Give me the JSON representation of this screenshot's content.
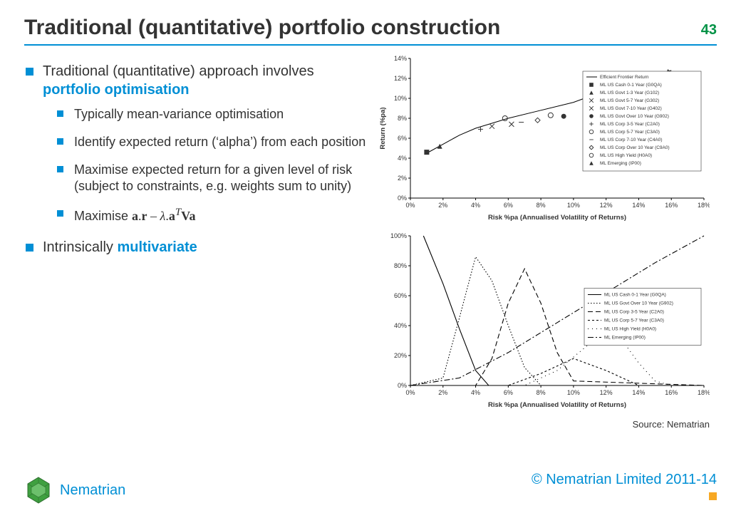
{
  "page_number": "43",
  "title": "Traditional (quantitative) portfolio construction",
  "accent_color": "#008fd5",
  "page_num_color": "#009245",
  "bullets": {
    "b1_prefix": "Traditional (quantitative) approach involves ",
    "b1_highlight": "portfolio optimisation",
    "sub1": "Typically mean-variance optimisation",
    "sub2": "Identify expected return (‘alpha’) from each position",
    "sub3": "Maximise expected return for a given level of risk (subject to constraints, e.g. weights sum to unity)",
    "sub4_prefix": "Maximise  ",
    "b2_prefix": "Intrinsically ",
    "b2_highlight": "multivariate"
  },
  "source": "Source: Nematrian",
  "footer": {
    "brand": "Nematrian",
    "copyright": "© Nematrian Limited 2011-14"
  },
  "chart_top": {
    "type": "scatter+line",
    "xlabel": "Risk %pa (Annualised Volatility of Returns)",
    "ylabel": "Return (%pa)",
    "xlim": [
      0,
      18
    ],
    "ylim": [
      0,
      14
    ],
    "xtick_step": 2,
    "xtick_suffix": "%",
    "ytick_step": 2,
    "ytick_suffix": "%",
    "background_color": "#ffffff",
    "axis_color": "#000000",
    "frontier_line": {
      "color": "#000000",
      "width": 1,
      "points_xy": [
        [
          1,
          4.5
        ],
        [
          2,
          5.4
        ],
        [
          3,
          6.3
        ],
        [
          4,
          7.0
        ],
        [
          6,
          8.0
        ],
        [
          8,
          8.8
        ],
        [
          10,
          9.6
        ],
        [
          12,
          10.8
        ],
        [
          14,
          12.0
        ],
        [
          16,
          12.8
        ]
      ]
    },
    "markers": [
      {
        "name": "ML US Cash 0-1 Year (G0QA)",
        "shape": "square",
        "x": 1.0,
        "y": 4.6
      },
      {
        "name": "ML US Govt 1-3 Year (G102)",
        "shape": "triangle",
        "x": 1.8,
        "y": 5.2
      },
      {
        "name": "ML US Govt 5-7 Year (G302)",
        "shape": "x",
        "x": 5.0,
        "y": 7.2
      },
      {
        "name": "ML US Govt 7-10 Year (G402)",
        "shape": "x",
        "x": 6.2,
        "y": 7.4
      },
      {
        "name": "ML US Govt Over 10 Year (G902)",
        "shape": "circle-filled",
        "x": 9.4,
        "y": 8.2
      },
      {
        "name": "ML US Corp 3-5 Year (C2A0)",
        "shape": "plus",
        "x": 4.3,
        "y": 6.9
      },
      {
        "name": "ML US Corp 5-7 Year (C3A0)",
        "shape": "circle-open",
        "x": 5.8,
        "y": 8.0
      },
      {
        "name": "ML US Corp 7-10 Year (C4A0)",
        "shape": "dash",
        "x": 6.8,
        "y": 7.6
      },
      {
        "name": "ML US Corp Over 10 Year (C9A0)",
        "shape": "diamond",
        "x": 7.8,
        "y": 7.8
      },
      {
        "name": "ML US High Yield (H0A0)",
        "shape": "circle-open",
        "x": 8.6,
        "y": 8.3
      },
      {
        "name": "ML Emerging (IP00)",
        "shape": "triangle",
        "x": 15.8,
        "y": 12.7
      }
    ],
    "legend_title": "Efficient Frontier Return",
    "legend_items": [
      "Efficient Frontier Return",
      "ML US Cash 0-1 Year (G0QA)",
      "ML US Govt 1-3 Year (G102)",
      "ML US Govt 5-7 Year (G302)",
      "ML US Govt 7-10 Year (G402)",
      "ML US Govt Over 10 Year (G902)",
      "ML US Corp 3-5 Year (C2A0)",
      "ML US Corp 5-7 Year (C3A0)",
      "ML US Corp 7-10 Year (C4A0)",
      "ML US Corp Over 10 Year (C9A0)",
      "ML US High Yield (H0A0)",
      "ML Emerging (IP00)"
    ]
  },
  "chart_bottom": {
    "type": "line",
    "xlabel": "Risk %pa (Annualised Volatility of Returns)",
    "xlim": [
      0,
      18
    ],
    "ylim": [
      0,
      100
    ],
    "xtick_step": 2,
    "xtick_suffix": "%",
    "yticks": [
      0,
      20,
      40,
      60,
      80,
      100
    ],
    "ytick_suffix": "%",
    "background_color": "#ffffff",
    "axis_color": "#000000",
    "series": [
      {
        "name": "ML US Cash 0-1 Year (G0QA)",
        "dash": "solid",
        "points_xy": [
          [
            0.8,
            100
          ],
          [
            2,
            68
          ],
          [
            3,
            38
          ],
          [
            4,
            10
          ],
          [
            4.8,
            0
          ],
          [
            18,
            0
          ]
        ]
      },
      {
        "name": "ML US Govt Over 10 Year (G902)",
        "dash": "dotted",
        "points_xy": [
          [
            0,
            0
          ],
          [
            2,
            5
          ],
          [
            3,
            45
          ],
          [
            4,
            86
          ],
          [
            5,
            70
          ],
          [
            6,
            40
          ],
          [
            7,
            12
          ],
          [
            8,
            0
          ],
          [
            18,
            0
          ]
        ]
      },
      {
        "name": "ML US Corp 3-5 Year (C2A0)",
        "dash": "dash-long",
        "points_xy": [
          [
            0,
            0
          ],
          [
            4,
            0
          ],
          [
            5,
            18
          ],
          [
            6,
            55
          ],
          [
            7,
            78
          ],
          [
            8,
            55
          ],
          [
            9,
            22
          ],
          [
            10,
            3
          ],
          [
            18,
            0
          ]
        ]
      },
      {
        "name": "ML US Corp 5-7 Year (C3A0)",
        "dash": "dash-short",
        "points_xy": [
          [
            0,
            0
          ],
          [
            6,
            0
          ],
          [
            8,
            8
          ],
          [
            10,
            18
          ],
          [
            12,
            10
          ],
          [
            14,
            0
          ],
          [
            18,
            0
          ]
        ]
      },
      {
        "name": "ML US High Yield (H0A0)",
        "dash": "sparse-dot",
        "points_xy": [
          [
            0,
            0
          ],
          [
            7,
            0
          ],
          [
            9,
            10
          ],
          [
            11,
            28
          ],
          [
            12,
            38
          ],
          [
            13,
            30
          ],
          [
            14,
            15
          ],
          [
            15,
            3
          ],
          [
            16,
            0
          ],
          [
            18,
            0
          ]
        ]
      },
      {
        "name": "ML Emerging (IP00)",
        "dash": "dashdot",
        "points_xy": [
          [
            0,
            0
          ],
          [
            3,
            5
          ],
          [
            6,
            22
          ],
          [
            9,
            42
          ],
          [
            12,
            62
          ],
          [
            15,
            82
          ],
          [
            18,
            100
          ]
        ]
      }
    ],
    "legend_items": [
      "ML US Cash 0-1 Year (G0QA)",
      "ML US Govt Over 10 Year (G902)",
      "ML US Corp 3-5 Year (C2A0)",
      "ML US Corp 5-7 Year (C3A0)",
      "ML US High Yield (H0A0)",
      "ML Emerging (IP00)"
    ]
  }
}
